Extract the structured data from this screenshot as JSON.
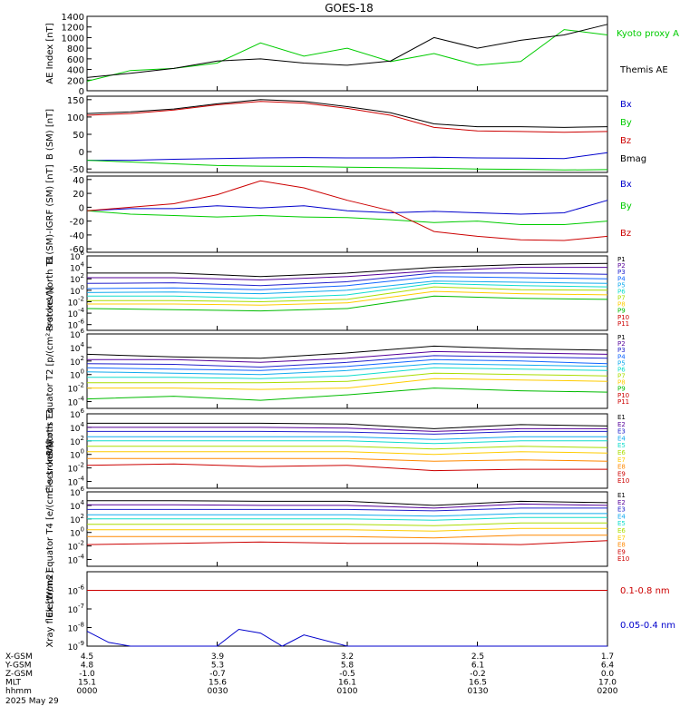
{
  "title": "GOES-18",
  "footer": {
    "row_labels": [
      "X-GSM",
      "Y-GSM",
      "Z-GSM",
      "MLT",
      "hhmm"
    ],
    "date": "2025 May 29",
    "columns": [
      {
        "values": [
          "4.5",
          "4.8",
          "-1.0",
          "15.1",
          "0000"
        ]
      },
      {
        "values": [
          "3.9",
          "5.3",
          "-0.7",
          "15.6",
          "0030"
        ]
      },
      {
        "values": [
          "3.2",
          "5.8",
          "-0.5",
          "16.1",
          "0100"
        ]
      },
      {
        "values": [
          "2.5",
          "6.1",
          "-0.2",
          "16.5",
          "0130"
        ]
      },
      {
        "values": [
          "1.7",
          "6.4",
          "0.0",
          "17.0",
          "0200"
        ]
      }
    ]
  },
  "colors": {
    "black": "#000000",
    "green": "#00cc00",
    "blue": "#0000cc",
    "red": "#cc0000"
  },
  "chart_data": [
    {
      "type": "line",
      "ylabel": "AE Index [nT]",
      "ylim": [
        0,
        1400
      ],
      "yticks": [
        "0",
        "200",
        "400",
        "600",
        "800",
        "1000",
        "1200",
        "1400"
      ],
      "x_minutes": [
        0,
        10,
        20,
        30,
        40,
        50,
        60,
        70,
        80,
        90,
        100,
        110,
        120
      ],
      "series": [
        {
          "name": "Kyoto proxy AE",
          "color": "#00cc00",
          "values": [
            180,
            380,
            420,
            520,
            900,
            650,
            800,
            550,
            700,
            480,
            550,
            1150,
            1050
          ]
        },
        {
          "name": "Themis AE",
          "color": "#000000",
          "values": [
            250,
            330,
            420,
            560,
            600,
            520,
            480,
            560,
            1000,
            800,
            950,
            1050,
            1250
          ]
        }
      ]
    },
    {
      "type": "line",
      "ylabel": "B (SM) [nT]",
      "ylim": [
        -60,
        160
      ],
      "yticks": [
        "-50",
        "0",
        "50",
        "100",
        "150"
      ],
      "x_minutes": [
        0,
        10,
        20,
        30,
        40,
        50,
        60,
        70,
        80,
        90,
        100,
        110,
        120
      ],
      "series": [
        {
          "name": "Bx",
          "color": "#0000cc",
          "values": [
            -25,
            -25,
            -22,
            -20,
            -18,
            -17,
            -18,
            -18,
            -16,
            -18,
            -19,
            -20,
            -3
          ]
        },
        {
          "name": "By",
          "color": "#00cc00",
          "values": [
            -25,
            -30,
            -35,
            -40,
            -42,
            -43,
            -45,
            -46,
            -48,
            -50,
            -51,
            -53,
            -52
          ]
        },
        {
          "name": "Bz",
          "color": "#cc0000",
          "values": [
            105,
            110,
            120,
            135,
            145,
            140,
            125,
            105,
            70,
            60,
            58,
            56,
            58
          ]
        },
        {
          "name": "Bmag",
          "color": "#000000",
          "values": [
            110,
            115,
            123,
            138,
            150,
            145,
            130,
            112,
            80,
            72,
            72,
            70,
            72
          ]
        }
      ]
    },
    {
      "type": "line",
      "ylabel": "B (SM)-IGRF (SM) [nT]",
      "ylim": [
        -65,
        45
      ],
      "yticks": [
        "-60",
        "-40",
        "-20",
        "0",
        "20",
        "40"
      ],
      "x_minutes": [
        0,
        10,
        20,
        30,
        40,
        50,
        60,
        70,
        80,
        90,
        100,
        110,
        120
      ],
      "series": [
        {
          "name": "Bx",
          "color": "#0000cc",
          "values": [
            -5,
            -2,
            -2,
            2,
            -1,
            2,
            -5,
            -8,
            -6,
            -8,
            -10,
            -8,
            10
          ]
        },
        {
          "name": "By",
          "color": "#00cc00",
          "values": [
            -5,
            -10,
            -12,
            -14,
            -12,
            -14,
            -15,
            -18,
            -22,
            -20,
            -25,
            -25,
            -20
          ]
        },
        {
          "name": "Bz",
          "color": "#cc0000",
          "values": [
            -5,
            0,
            5,
            18,
            38,
            28,
            10,
            -5,
            -35,
            -42,
            -47,
            -48,
            -42
          ]
        }
      ]
    },
    {
      "type": "line",
      "log": true,
      "ylabel": "Protons North T1",
      "ylim_exp": [
        -7,
        6
      ],
      "ytick_exps": [
        -6,
        -4,
        -2,
        0,
        2,
        4,
        6
      ],
      "x_minutes": [
        0,
        20,
        40,
        60,
        80,
        100,
        120
      ],
      "series": [
        {
          "name": "P1",
          "color": "#000000",
          "values": [
            3,
            3,
            2.4,
            3,
            4,
            4.5,
            4.7
          ]
        },
        {
          "name": "P2",
          "color": "#550099",
          "values": [
            2.2,
            2.2,
            1.8,
            2.4,
            3.4,
            4,
            4
          ]
        },
        {
          "name": "P3",
          "color": "#2222cc",
          "values": [
            1.2,
            1.3,
            0.8,
            1.5,
            3,
            3,
            2.8
          ]
        },
        {
          "name": "P4",
          "color": "#1166ff",
          "values": [
            0.3,
            0.4,
            0.1,
            0.8,
            2.4,
            2.2,
            2
          ]
        },
        {
          "name": "P5",
          "color": "#11aaee",
          "values": [
            -0.4,
            -0.3,
            -0.6,
            0,
            1.6,
            1.4,
            1.2
          ]
        },
        {
          "name": "P6",
          "color": "#11ddcc",
          "values": [
            -1,
            -1,
            -1.4,
            -0.8,
            1.2,
            0.8,
            0.6
          ]
        },
        {
          "name": "P7",
          "color": "#aadd00",
          "values": [
            -1.8,
            -1.8,
            -2,
            -1.6,
            0.6,
            0.1,
            0
          ]
        },
        {
          "name": "P8",
          "color": "#ffcc00",
          "values": [
            -2.4,
            -2.4,
            -2.6,
            -2.2,
            -0.2,
            -0.6,
            -0.8
          ]
        },
        {
          "name": "P9",
          "color": "#00bb00",
          "values": [
            -3.2,
            -3.4,
            -3.6,
            -3.2,
            -1,
            -1.4,
            -1.6
          ]
        }
      ]
    },
    {
      "type": "line",
      "log": true,
      "ylabel": "Protons Equator T2 [p/(cm²-s-sr-keV)]",
      "ylim_exp": [
        -5,
        6
      ],
      "ytick_exps": [
        -4,
        -2,
        0,
        2,
        4,
        6
      ],
      "x_minutes": [
        0,
        20,
        40,
        60,
        80,
        100,
        120
      ],
      "series": [
        {
          "name": "P1",
          "color": "#000000",
          "values": [
            3,
            2.6,
            2.4,
            3.2,
            4.2,
            3.8,
            3.6
          ]
        },
        {
          "name": "P2",
          "color": "#550099",
          "values": [
            2.2,
            2.2,
            1.8,
            2.4,
            3.4,
            3.2,
            3
          ]
        },
        {
          "name": "P3",
          "color": "#2222cc",
          "values": [
            1.6,
            1.5,
            1.1,
            1.8,
            2.8,
            2.6,
            2.4
          ]
        },
        {
          "name": "P4",
          "color": "#1166ff",
          "values": [
            1,
            0.8,
            0.6,
            1.2,
            2.2,
            2,
            1.6
          ]
        },
        {
          "name": "P5",
          "color": "#11aaee",
          "values": [
            0.4,
            0.2,
            0,
            0.6,
            1.6,
            1.4,
            1.2
          ]
        },
        {
          "name": "P6",
          "color": "#11ddcc",
          "values": [
            -0.4,
            -0.4,
            -0.6,
            -0.2,
            1,
            0.8,
            0.6
          ]
        },
        {
          "name": "P7",
          "color": "#aadd00",
          "values": [
            -1.2,
            -1.2,
            -1.2,
            -1,
            0.2,
            0,
            -0.2
          ]
        },
        {
          "name": "P8",
          "color": "#ffcc00",
          "values": [
            -2,
            -2,
            -2.2,
            -2,
            -0.6,
            -0.8,
            -1
          ]
        },
        {
          "name": "P9",
          "color": "#00bb00",
          "values": [
            -3.6,
            -3.2,
            -3.8,
            -3,
            -2,
            -2.4,
            -2.6
          ]
        }
      ]
    },
    {
      "type": "line",
      "log": true,
      "ylabel": "Electrons North T3",
      "ylim_exp": [
        -5,
        6
      ],
      "ytick_exps": [
        -4,
        -2,
        0,
        2,
        4,
        6
      ],
      "x_minutes": [
        0,
        20,
        40,
        60,
        80,
        100,
        120
      ],
      "series": [
        {
          "name": "E1",
          "color": "#000000",
          "values": [
            4.6,
            4.6,
            4.6,
            4.5,
            3.8,
            4.4,
            4.2
          ]
        },
        {
          "name": "E2",
          "color": "#550099",
          "values": [
            4,
            4,
            4,
            3.9,
            3.4,
            3.8,
            3.8
          ]
        },
        {
          "name": "E3",
          "color": "#2222cc",
          "values": [
            3.4,
            3.4,
            3.4,
            3.3,
            3,
            3.4,
            3.4
          ]
        },
        {
          "name": "E4",
          "color": "#11aaee",
          "values": [
            2.6,
            2.6,
            2.6,
            2.6,
            2.2,
            2.6,
            2.6
          ]
        },
        {
          "name": "E5",
          "color": "#11ddcc",
          "values": [
            2,
            2,
            2,
            2,
            1.6,
            2,
            2
          ]
        },
        {
          "name": "E6",
          "color": "#aadd00",
          "values": [
            1.2,
            1.2,
            1.2,
            1.2,
            0.8,
            1.2,
            1
          ]
        },
        {
          "name": "E7",
          "color": "#ffcc00",
          "values": [
            0.4,
            0.4,
            0.4,
            0.4,
            0,
            0.4,
            0.2
          ]
        },
        {
          "name": "E8",
          "color": "#ff8800",
          "values": [
            -0.6,
            -0.6,
            -0.6,
            -0.6,
            -1,
            -0.8,
            -1
          ]
        },
        {
          "name": "E9",
          "color": "#cc0000",
          "values": [
            -1.6,
            -1.4,
            -1.8,
            -1.6,
            -2.4,
            -2.2,
            -2.2
          ]
        }
      ]
    },
    {
      "type": "line",
      "log": true,
      "ylabel": "Electrons Equator T4 [e/(cm²-s-sr-keV)]",
      "ylim_exp": [
        -5,
        6
      ],
      "ytick_exps": [
        -4,
        -2,
        0,
        2,
        4,
        6
      ],
      "x_minutes": [
        0,
        20,
        40,
        60,
        80,
        100,
        120
      ],
      "series": [
        {
          "name": "E1",
          "color": "#000000",
          "values": [
            4.7,
            4.7,
            4.6,
            4.6,
            4,
            4.6,
            4.4
          ]
        },
        {
          "name": "E2",
          "color": "#550099",
          "values": [
            4.1,
            4.1,
            4,
            4,
            3.6,
            4.2,
            4
          ]
        },
        {
          "name": "E3",
          "color": "#2222cc",
          "values": [
            3.4,
            3.4,
            3.4,
            3.4,
            3.2,
            3.6,
            3.6
          ]
        },
        {
          "name": "E4",
          "color": "#11aaee",
          "values": [
            2.6,
            2.6,
            2.6,
            2.6,
            2.4,
            2.8,
            2.8
          ]
        },
        {
          "name": "E5",
          "color": "#11ddcc",
          "values": [
            2,
            2,
            2,
            2,
            1.8,
            2.2,
            2.2
          ]
        },
        {
          "name": "E6",
          "color": "#aadd00",
          "values": [
            1.2,
            1.2,
            1.2,
            1.2,
            1,
            1.4,
            1.4
          ]
        },
        {
          "name": "E7",
          "color": "#ffcc00",
          "values": [
            0.4,
            0.4,
            0.4,
            0.4,
            0.2,
            0.6,
            0.6
          ]
        },
        {
          "name": "E8",
          "color": "#ff8800",
          "values": [
            -0.6,
            -0.6,
            -0.6,
            -0.6,
            -0.8,
            -0.4,
            -0.4
          ]
        },
        {
          "name": "E9",
          "color": "#cc0000",
          "values": [
            -1.8,
            -1.6,
            -1.4,
            -1.6,
            -1.6,
            -1.8,
            -1.2
          ]
        }
      ]
    },
    {
      "type": "line",
      "log": true,
      "ylabel": "Xray flux [W/m2]",
      "ylim_exp": [
        -9,
        -5
      ],
      "ytick_exps": [
        -9,
        -8,
        -7,
        -6
      ],
      "x_minutes": [
        0,
        5,
        10,
        20,
        30,
        35,
        40,
        45,
        50,
        60,
        80,
        100,
        120
      ],
      "series": [
        {
          "name": "0.1-0.8 nm",
          "color": "#cc0000",
          "values": [
            -6,
            -6,
            -6,
            -6,
            -6,
            -6,
            -6,
            -6,
            -6,
            -6,
            -6,
            -6,
            -6
          ]
        },
        {
          "name": "0.05-0.4 nm",
          "color": "#0000cc",
          "values": [
            -8.2,
            -8.8,
            -9,
            -9,
            -9,
            -8.1,
            -8.3,
            -9,
            -8.4,
            -9,
            -9,
            -9,
            -9
          ]
        }
      ]
    }
  ],
  "legends": [
    [
      "Kyoto proxy AE",
      "Themis AE"
    ],
    [
      "Bx",
      "By",
      "Bz",
      "Bmag"
    ],
    [
      "Bx",
      "By",
      "Bz"
    ],
    [
      "P1",
      "P2",
      "P3",
      "P4",
      "P5",
      "P6",
      "P7",
      "P8",
      "P9",
      "P10",
      "P11"
    ],
    [
      "P1",
      "P2",
      "P3",
      "P4",
      "P5",
      "P6",
      "P7",
      "P8",
      "P9",
      "P10",
      "P11"
    ],
    [
      "E1",
      "E2",
      "E3",
      "E4",
      "E5",
      "E6",
      "E7",
      "E8",
      "E9",
      "E10"
    ],
    [
      "E1",
      "E2",
      "E3",
      "E4",
      "E5",
      "E6",
      "E7",
      "E8",
      "E9",
      "E10"
    ],
    [
      "0.1-0.8 nm",
      "0.05-0.4 nm"
    ]
  ]
}
